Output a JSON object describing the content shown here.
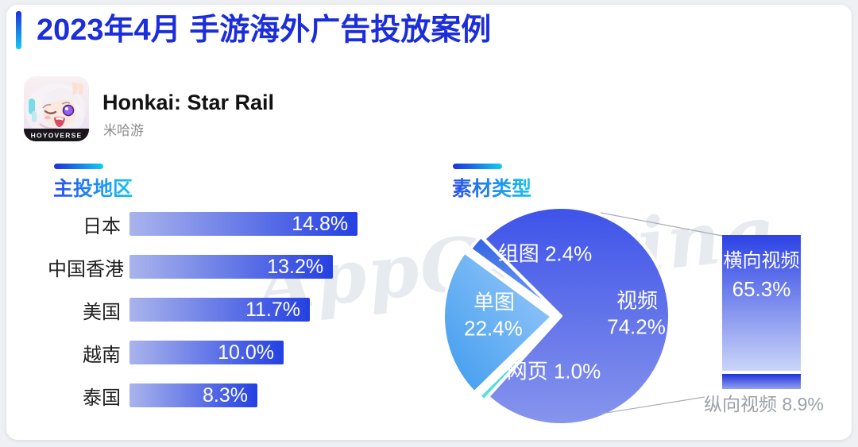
{
  "title": "2023年4月 手游海外广告投放案例",
  "app": {
    "name": "Honkai: Star Rail",
    "publisher": "米哈游",
    "icon_brand": "HOYOVERSE"
  },
  "watermark": "AppGrowing",
  "sections": {
    "regions_title": "主投地区",
    "materials_title": "素材类型"
  },
  "colors": {
    "title_blue": "#1C2EDB",
    "accent_gradient": [
      "#1C30DE",
      "#12CBF2"
    ],
    "section_gradient": [
      "#2B50EC",
      "#14C4F2"
    ],
    "bar_gradient": [
      "#A9B4EC",
      "#2440E2"
    ],
    "pie_video": [
      "#3E53E9",
      "#8795EC"
    ],
    "pie_single": [
      "#9FCBF9",
      "#3D9BEF"
    ],
    "pie_group": [
      "#2F62E4",
      "#7AA2F2"
    ],
    "pie_web": [
      "#20CFD6",
      "#5FE3D9"
    ],
    "hbar_gradient": [
      "#2C42E4",
      "#CBD5F8"
    ],
    "vbar_gradient": [
      "#1E33DC",
      "#93A2EE"
    ],
    "muted_label": "#9CA1A8"
  },
  "chart_data": [
    {
      "type": "bar",
      "orientation": "horizontal",
      "title": "主投地区",
      "categories": [
        "日本",
        "中国香港",
        "美国",
        "越南",
        "泰国"
      ],
      "values": [
        14.8,
        13.2,
        11.7,
        10.0,
        8.3
      ],
      "unit": "%",
      "value_label_position": "inside-right",
      "xlim": [
        0,
        15
      ]
    },
    {
      "type": "pie",
      "title": "素材类型",
      "labels": [
        "视频",
        "单图",
        "组图",
        "网页"
      ],
      "values": [
        74.2,
        22.4,
        2.4,
        1.0
      ],
      "unit": "%",
      "start_angle_deg": 315,
      "direction": "clockwise",
      "slice_order_clockwise": [
        "视频",
        "网页",
        "单图",
        "组图"
      ],
      "labels_inside": true
    },
    {
      "type": "bar",
      "subtype": "stacked-video-detail",
      "categories": [
        "横向视频",
        "纵向视频"
      ],
      "values": [
        65.3,
        8.9
      ],
      "unit": "%"
    }
  ]
}
